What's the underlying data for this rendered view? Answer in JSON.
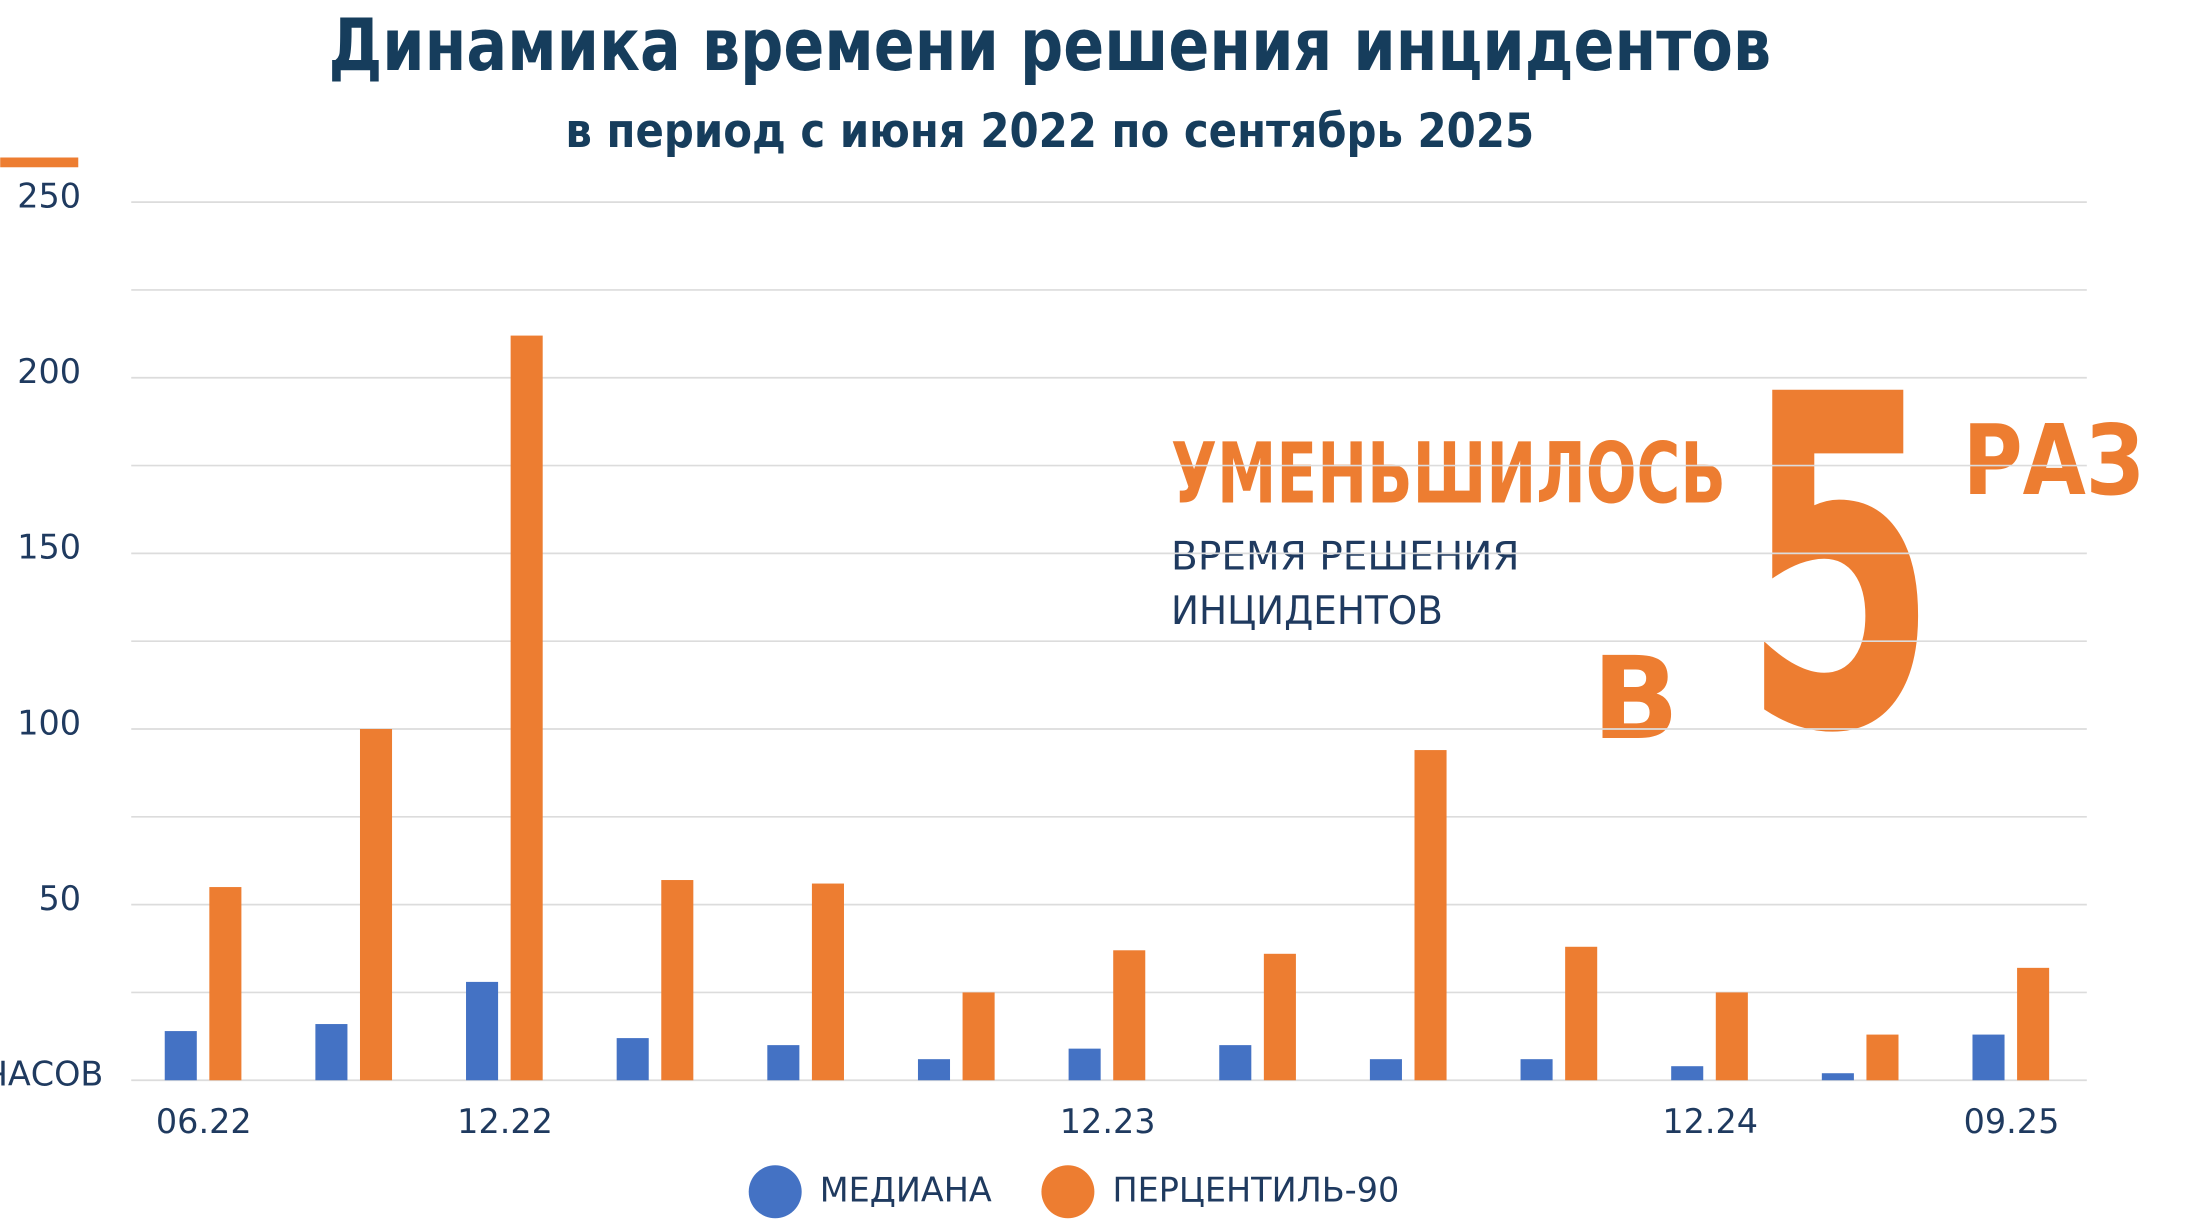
{
  "chart_data": {
    "type": "bar",
    "title": "Динамика времени решения инцидентов",
    "subtitle": "в период с июня 2022 по сентябрь 2025",
    "categories": [
      "06.22",
      null,
      "12.22",
      null,
      null,
      null,
      "12.23",
      null,
      null,
      null,
      "12.24",
      null,
      "09.25"
    ],
    "series": [
      {
        "name": "МЕДИАНА",
        "color": "#4472c4",
        "values": [
          14,
          16,
          28,
          12,
          10,
          6,
          9,
          10,
          6,
          6,
          4,
          2,
          13
        ]
      },
      {
        "name": "ПЕРЦЕНТИЛЬ-90",
        "color": "#ed7d31",
        "values": [
          55,
          100,
          212,
          57,
          56,
          25,
          37,
          36,
          94,
          38,
          25,
          13,
          32
        ]
      }
    ],
    "ylim": [
      0,
      250
    ],
    "yticks": [
      {
        "value": 0,
        "label": "ЧАСОВ"
      },
      50,
      100,
      150,
      200,
      250
    ],
    "minor_yticks": [
      25,
      75,
      125,
      175,
      225
    ],
    "grid": true,
    "legend": "bottom",
    "annotations": {
      "headline": "УМЕНЬШИЛОСЬ",
      "line1": "ВРЕМЯ РЕШЕНИЯ",
      "line2": "ИНЦИДЕНТОВ",
      "prefix": "В",
      "number": "5",
      "suffix": "РАЗ"
    }
  }
}
